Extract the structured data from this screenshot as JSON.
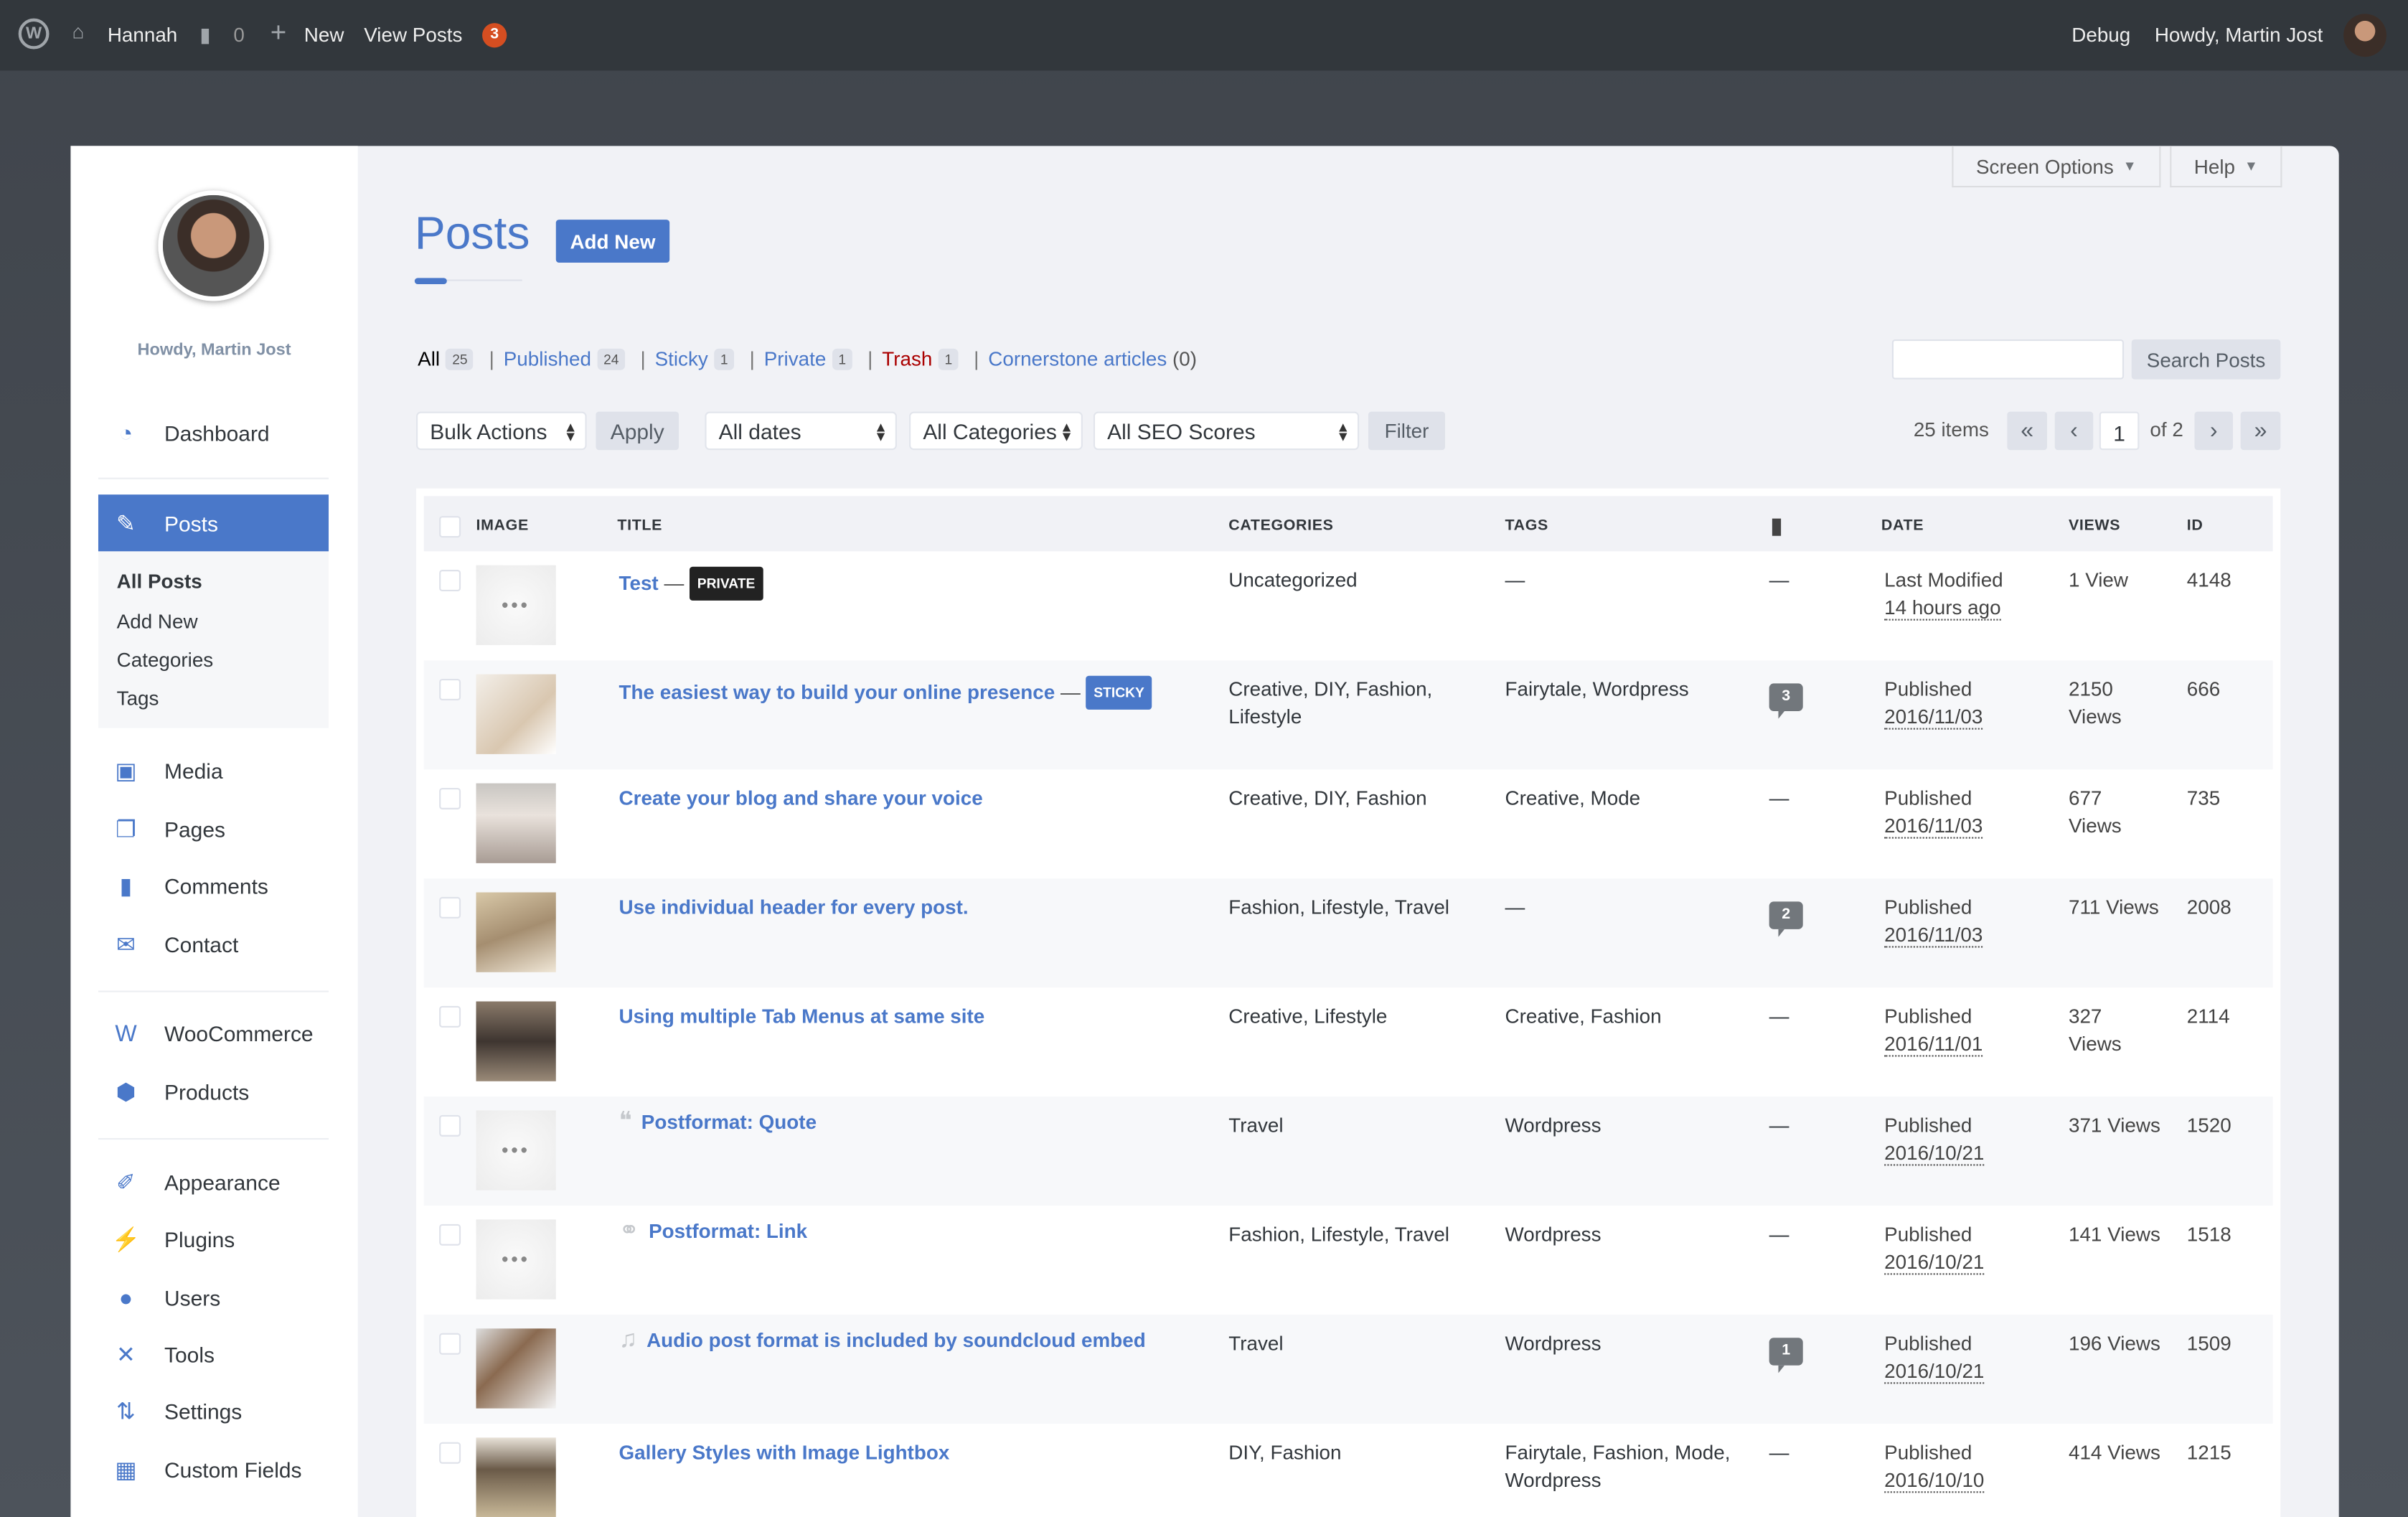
{
  "adminbar": {
    "site": "Hannah",
    "comments": "0",
    "new": "New",
    "view_posts": "View Posts",
    "badge": "3",
    "debug": "Debug",
    "howdy": "Howdy, Martin Jost"
  },
  "sidebar": {
    "howdy": "Howdy, Martin Jost",
    "items": [
      {
        "label": "Dashboard",
        "icon": "dashboard-icon"
      },
      {
        "label": "Posts",
        "icon": "pin-icon"
      },
      {
        "label": "Media",
        "icon": "media-icon"
      },
      {
        "label": "Pages",
        "icon": "pages-icon"
      },
      {
        "label": "Comments",
        "icon": "comment-icon"
      },
      {
        "label": "Contact",
        "icon": "mail-icon"
      },
      {
        "label": "WooCommerce",
        "icon": "woo-icon"
      },
      {
        "label": "Products",
        "icon": "box-icon"
      },
      {
        "label": "Appearance",
        "icon": "brush-icon"
      },
      {
        "label": "Plugins",
        "icon": "plug-icon"
      },
      {
        "label": "Users",
        "icon": "user-icon"
      },
      {
        "label": "Tools",
        "icon": "wrench-icon"
      },
      {
        "label": "Settings",
        "icon": "sliders-icon"
      },
      {
        "label": "Custom Fields",
        "icon": "table-icon"
      }
    ],
    "submenu": [
      "All Posts",
      "Add New",
      "Categories",
      "Tags"
    ]
  },
  "header": {
    "title": "Posts",
    "add_new": "Add New",
    "screen_options": "Screen Options",
    "help": "Help"
  },
  "filters": [
    {
      "label": "All",
      "count": "25"
    },
    {
      "label": "Published",
      "count": "24"
    },
    {
      "label": "Sticky",
      "count": "1"
    },
    {
      "label": "Private",
      "count": "1"
    },
    {
      "label": "Trash",
      "count": "1"
    },
    {
      "label": "Cornerstone articles",
      "count": "(0)"
    }
  ],
  "search": {
    "value": "",
    "button": "Search Posts"
  },
  "toolbar": {
    "bulk": "Bulk Actions",
    "apply": "Apply",
    "dates": "All dates",
    "categories": "All Categories",
    "seo": "All SEO Scores",
    "filter": "Filter",
    "items": "25 items",
    "page": "1",
    "of": "of 2",
    "first": "«",
    "prev": "‹",
    "next": "›",
    "last": "»"
  },
  "columns": {
    "image": "IMAGE",
    "title": "TITLE",
    "categories": "CATEGORIES",
    "tags": "TAGS",
    "date": "DATE",
    "views": "VIEWS",
    "id": "ID"
  },
  "colors": {
    "accent": "#4a78c9",
    "trash": "#a00",
    "adminbar": "#32373c"
  },
  "rows": [
    {
      "title": "Test",
      "state": "PRIVATE",
      "state_color": "#222",
      "thumb": "placeholder",
      "categories": "Uncategorized",
      "tags": "—",
      "comments": "—",
      "date_label": "Last Modified",
      "date": "14 hours ago",
      "views": "1 View",
      "id": "4148"
    },
    {
      "title": "The easiest way to build your online presence",
      "state": "STICKY",
      "state_color": "#4a78c9",
      "thumb": "photo",
      "categories": "Creative, DIY, Fashion, Lifestyle",
      "tags": "Fairytale, Wordpress",
      "comments": "3",
      "date_label": "Published",
      "date": "2016/11/03",
      "views": "2150 Views",
      "id": "666"
    },
    {
      "title": "Create your blog and share your voice",
      "thumb": "photo",
      "categories": "Creative, DIY, Fashion",
      "tags": "Creative, Mode",
      "comments": "—",
      "date_label": "Published",
      "date": "2016/11/03",
      "views": "677 Views",
      "id": "735"
    },
    {
      "title": "Use individual header for every post.",
      "thumb": "photo",
      "categories": "Fashion, Lifestyle, Travel",
      "tags": "—",
      "comments": "2",
      "date_label": "Published",
      "date": "2016/11/03",
      "views": "711 Views",
      "id": "2008"
    },
    {
      "title": "Using multiple Tab Menus at same site",
      "thumb": "photo",
      "categories": "Creative, Lifestyle",
      "tags": "Creative, Fashion",
      "comments": "—",
      "date_label": "Published",
      "date": "2016/11/01",
      "views": "327 Views",
      "id": "2114"
    },
    {
      "title": "Postformat: Quote",
      "format_icon": "quote-icon",
      "thumb": "placeholder",
      "categories": "Travel",
      "tags": "Wordpress",
      "comments": "—",
      "date_label": "Published",
      "date": "2016/10/21",
      "views": "371 Views",
      "id": "1520"
    },
    {
      "title": "Postformat: Link",
      "format_icon": "link-icon",
      "thumb": "placeholder",
      "categories": "Fashion, Lifestyle, Travel",
      "tags": "Wordpress",
      "comments": "—",
      "date_label": "Published",
      "date": "2016/10/21",
      "views": "141 Views",
      "id": "1518"
    },
    {
      "title": "Audio post format is included by soundcloud embed",
      "format_icon": "music-icon",
      "thumb": "photo",
      "categories": "Travel",
      "tags": "Wordpress",
      "comments": "1",
      "date_label": "Published",
      "date": "2016/10/21",
      "views": "196 Views",
      "id": "1509"
    },
    {
      "title": "Gallery Styles with Image Lightbox",
      "thumb": "photo",
      "categories": "DIY, Fashion",
      "tags": "Fairytale, Fashion, Mode, Wordpress",
      "comments": "—",
      "date_label": "Published",
      "date": "2016/10/10",
      "views": "414 Views",
      "id": "1215"
    }
  ]
}
